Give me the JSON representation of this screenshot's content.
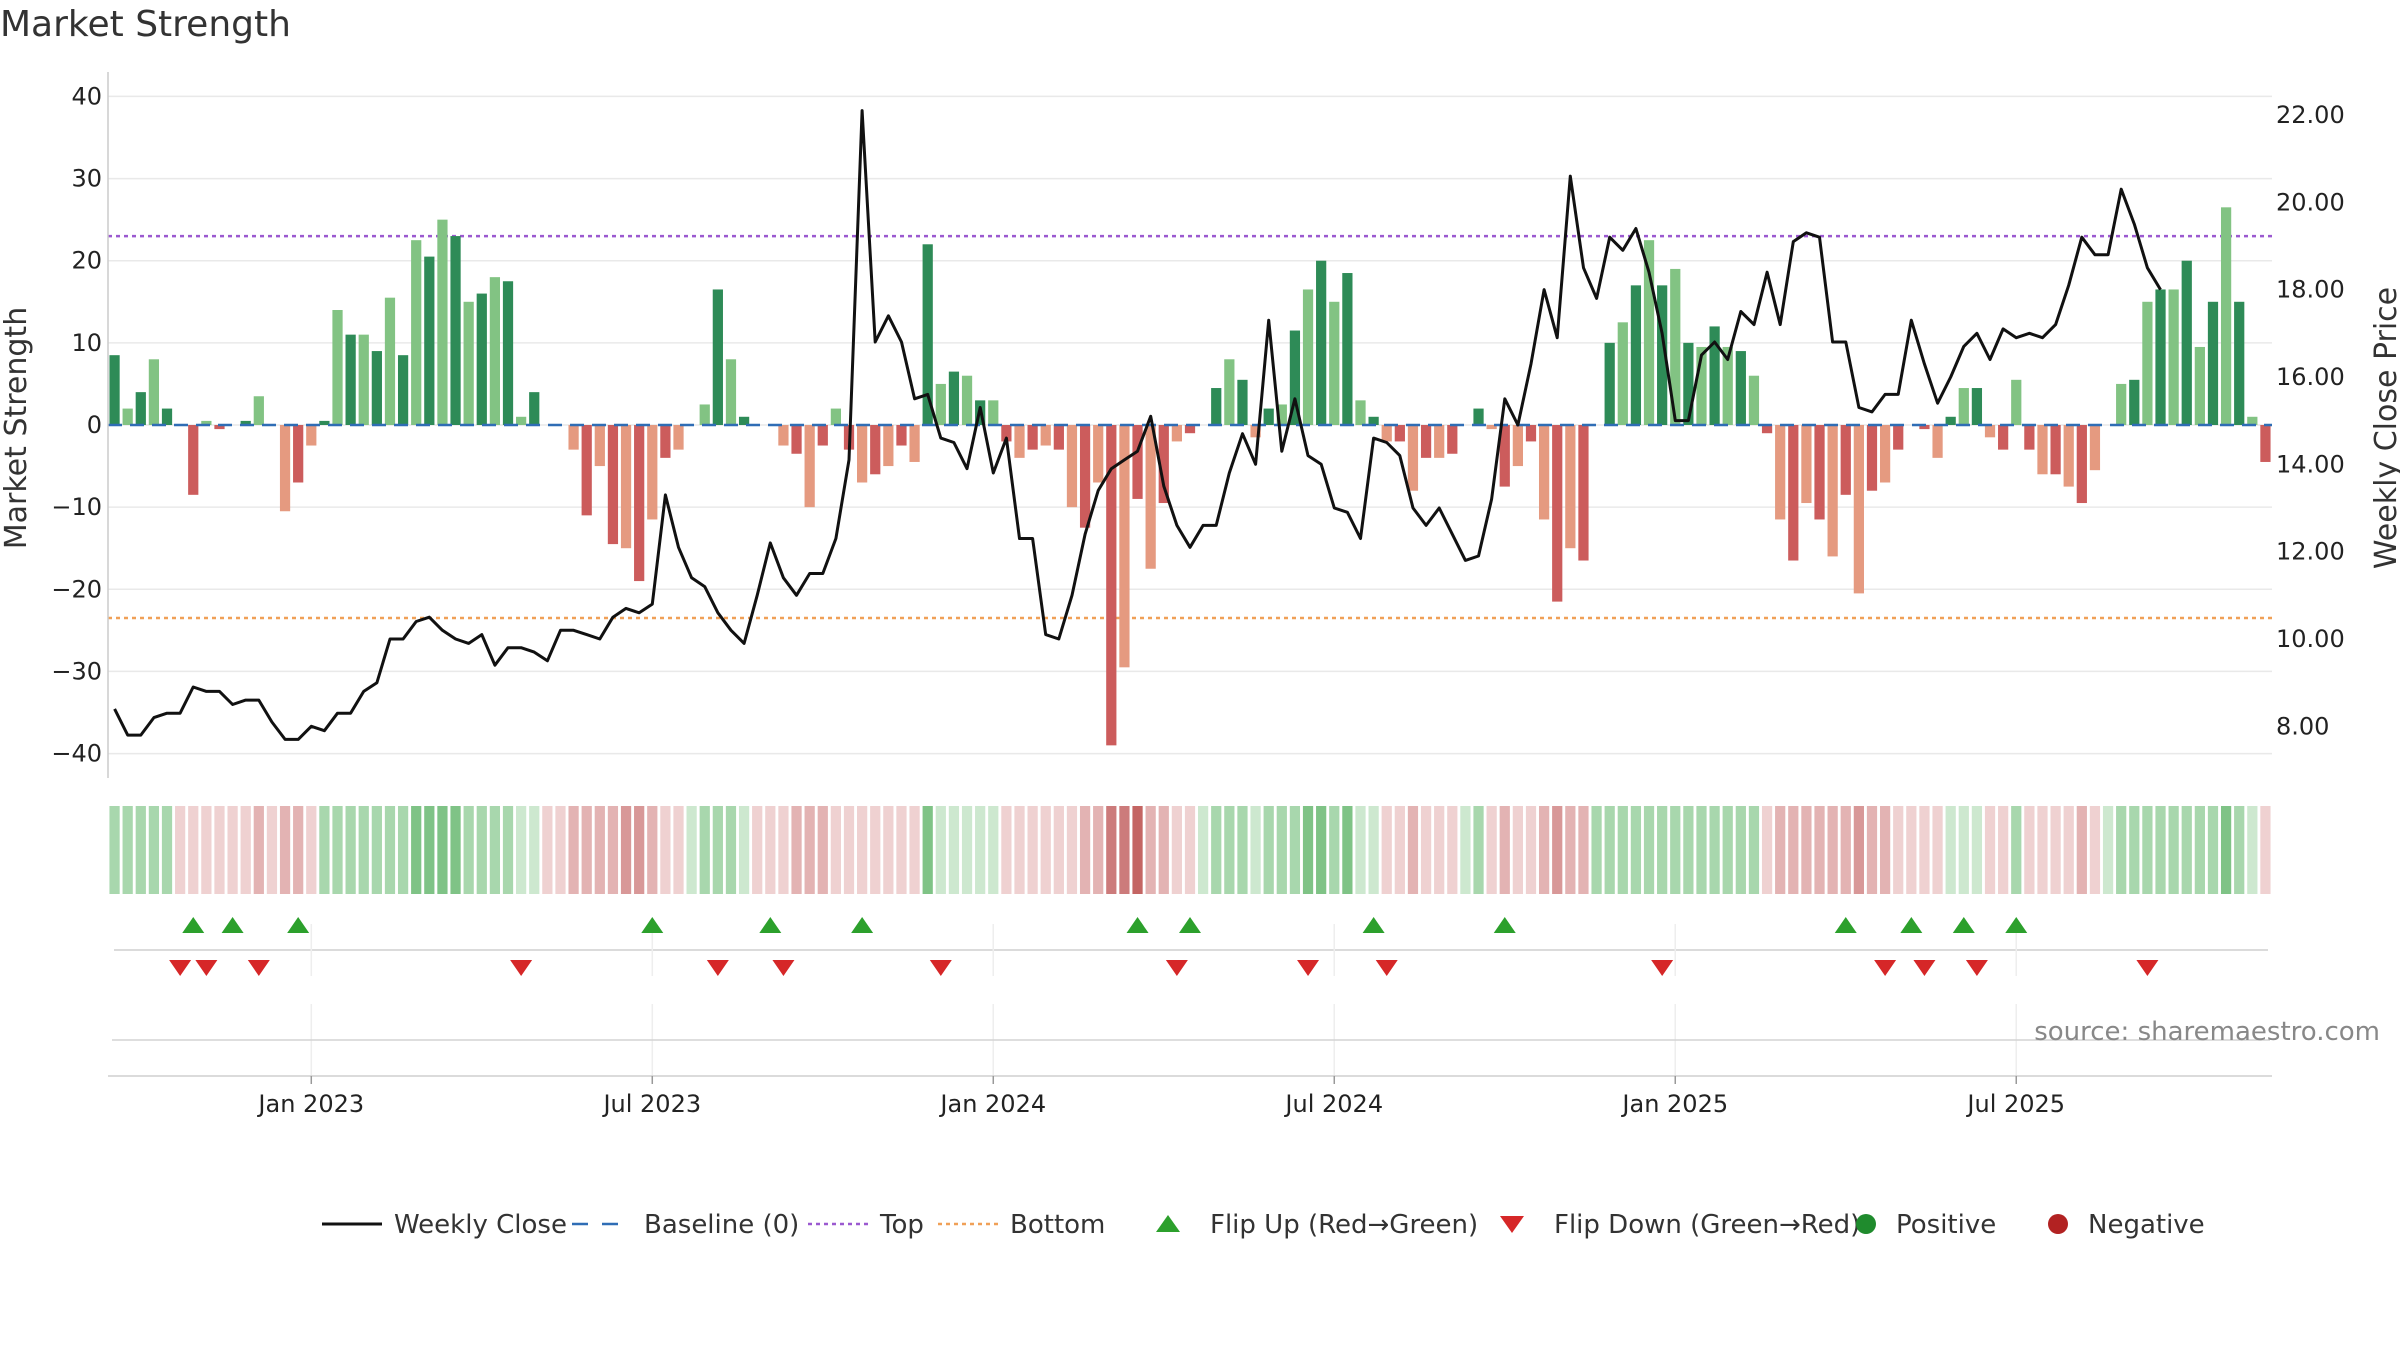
{
  "chart_data": {
    "type": "bar",
    "title": "Market Strength",
    "ylabel_left": "Market Strength",
    "ylabel_right": "Weekly Close Price",
    "ylim_left": [
      -42,
      42
    ],
    "ylim_right": [
      7.0,
      22.8
    ],
    "yticks_left": [
      40,
      30,
      20,
      10,
      0,
      -10,
      -20,
      -30,
      -40
    ],
    "yticks_right": [
      22.0,
      20.0,
      18.0,
      16.0,
      14.0,
      12.0,
      10.0,
      8.0
    ],
    "x_ticks": [
      {
        "week": 15,
        "label": "Jan 2023"
      },
      {
        "week": 41,
        "label": "Jul 2023"
      },
      {
        "week": 67,
        "label": "Jan 2024"
      },
      {
        "week": 93,
        "label": "Jul 2024"
      },
      {
        "week": 119,
        "label": "Jan 2025"
      },
      {
        "week": 145,
        "label": "Jul 2025"
      }
    ],
    "top_line": 23,
    "bottom_line": -23.5,
    "baseline": 0,
    "strength": [
      8.5,
      2,
      4,
      8,
      2,
      0,
      -8.5,
      0.5,
      -0.5,
      0,
      0.5,
      3.5,
      0,
      -10.5,
      -7,
      -2.5,
      0.5,
      14,
      11,
      11,
      9,
      15.5,
      8.5,
      22.5,
      20.5,
      25,
      23,
      15,
      16,
      18,
      17.5,
      1,
      4,
      0,
      0,
      -3,
      -11,
      -5,
      -14.5,
      -15,
      -19,
      -11.5,
      -4,
      -3,
      0,
      2.5,
      16.5,
      8,
      1,
      0,
      0,
      -2.5,
      -3.5,
      -10,
      -2.5,
      2,
      -3,
      -7,
      -6,
      -5,
      -2.5,
      -4.5,
      22,
      5,
      6.5,
      6,
      3,
      3,
      -2,
      -4,
      -3,
      -2.5,
      -3,
      -10,
      -12.5,
      -7,
      -39,
      -29.5,
      -9,
      -17.5,
      -9.5,
      -2,
      -1,
      0,
      4.5,
      8,
      5.5,
      -1.5,
      2,
      2.5,
      11.5,
      16.5,
      20,
      15,
      18.5,
      3,
      1,
      -2,
      -2,
      -8,
      -4,
      -4,
      -3.5,
      0,
      2,
      -0.5,
      -7.5,
      -5,
      -2,
      -11.5,
      -21.5,
      -15,
      -16.5,
      0,
      10,
      12.5,
      17,
      22.5,
      17,
      19,
      10,
      9.5,
      12,
      9.5,
      9,
      6,
      -1,
      -11.5,
      -16.5,
      -9.5,
      -11.5,
      -16,
      -8.5,
      -20.5,
      -8,
      -7,
      -3,
      0,
      -0.5,
      -4,
      1,
      4.5,
      4.5,
      -1.5,
      -3,
      5.5,
      -3,
      -6,
      -6,
      -7.5,
      -9.5,
      -5.5,
      0,
      5,
      5.5,
      15,
      16.5,
      16.5,
      20,
      9.5,
      15,
      26.5,
      15,
      1,
      -4.5
    ],
    "weekly_close": [
      8.4,
      7.8,
      7.8,
      8.2,
      8.3,
      8.3,
      8.9,
      8.8,
      8.8,
      8.5,
      8.6,
      8.6,
      8.1,
      7.7,
      7.7,
      8.0,
      7.9,
      8.3,
      8.3,
      8.8,
      9.0,
      10.0,
      10.0,
      10.4,
      10.5,
      10.2,
      10.0,
      9.9,
      10.1,
      9.4,
      9.8,
      9.8,
      9.7,
      9.5,
      10.2,
      10.2,
      10.1,
      10.0,
      10.5,
      10.7,
      10.6,
      10.8,
      13.3,
      12.1,
      11.4,
      11.2,
      10.6,
      10.2,
      9.9,
      11.0,
      12.2,
      11.4,
      11.0,
      11.5,
      11.5,
      12.3,
      14.1,
      22.1,
      16.8,
      17.4,
      16.8,
      15.5,
      15.6,
      14.6,
      14.5,
      13.9,
      15.3,
      13.8,
      14.6,
      12.3,
      12.3,
      10.1,
      10.0,
      11.0,
      12.4,
      13.4,
      13.9,
      14.1,
      14.3,
      15.1,
      13.5,
      12.6,
      12.1,
      12.6,
      12.6,
      13.8,
      14.7,
      14.0,
      17.3,
      14.3,
      15.5,
      14.2,
      14.0,
      13.0,
      12.9,
      12.3,
      14.6,
      14.5,
      14.2,
      13.0,
      12.6,
      13.0,
      12.4,
      11.8,
      11.9,
      13.2,
      15.5,
      14.9,
      16.3,
      18.0,
      16.9,
      20.6,
      18.5,
      17.8,
      19.2,
      18.9,
      19.4,
      18.4,
      17.0,
      15.0,
      15.0,
      16.5,
      16.8,
      16.4,
      17.5,
      17.2,
      18.4,
      17.2,
      19.1,
      19.3,
      19.2,
      16.8,
      16.8,
      15.3,
      15.2,
      15.6,
      15.6,
      17.3,
      16.3,
      15.4,
      16.0,
      16.7,
      17.0,
      16.4,
      17.1,
      16.9,
      17.0,
      16.9,
      17.2,
      18.1,
      19.2,
      18.8,
      18.8,
      20.3,
      19.5,
      18.5,
      18.0
    ],
    "color_strip": [
      2,
      2,
      2,
      2,
      2,
      -1,
      -1,
      -1,
      -1,
      -1,
      -1,
      -2,
      -1,
      -2,
      -2,
      -1,
      2,
      2,
      2,
      2,
      2,
      2,
      2,
      3,
      3,
      3,
      3,
      2,
      2,
      2,
      2,
      1,
      1,
      -1,
      -1,
      -2,
      -2,
      -2,
      -2,
      -3,
      -3,
      -2,
      -1,
      -1,
      1,
      2,
      2,
      2,
      1,
      -1,
      -1,
      -1,
      -2,
      -2,
      -2,
      -1,
      -1,
      -1,
      -1,
      -1,
      -1,
      -1,
      3,
      1,
      1,
      1,
      1,
      1,
      -1,
      -1,
      -1,
      -1,
      -1,
      -1,
      -2,
      -2,
      -4,
      -4,
      -9,
      -2,
      -2,
      -1,
      -1,
      1,
      2,
      2,
      2,
      1,
      2,
      2,
      2,
      3,
      3,
      2,
      3,
      1,
      1,
      -1,
      -1,
      -2,
      -1,
      -1,
      -1,
      1,
      2,
      -1,
      -2,
      -1,
      -1,
      -2,
      -3,
      -2,
      -2,
      2,
      2,
      2,
      2,
      2,
      2,
      2,
      2,
      2,
      2,
      2,
      2,
      2,
      -1,
      -2,
      -2,
      -2,
      -2,
      -2,
      -2,
      -3,
      -2,
      -2,
      -1,
      -1,
      -1,
      -1,
      1,
      1,
      1,
      -1,
      -1,
      2,
      -1,
      -1,
      -1,
      -1,
      -2,
      -1,
      1,
      2,
      2,
      2,
      2,
      2,
      2,
      2,
      2,
      3,
      2,
      1,
      -1
    ],
    "flip_up_weeks": [
      6,
      9,
      14,
      41,
      50,
      57,
      78,
      82,
      96,
      106,
      132,
      137,
      141,
      145
    ],
    "flip_down_weeks": [
      5,
      7,
      11,
      31,
      46,
      51,
      63,
      81,
      91,
      97,
      118,
      135,
      138,
      142,
      155
    ],
    "legend": [
      {
        "label": "Weekly Close",
        "symbol": "line",
        "color": "#111111"
      },
      {
        "label": "Baseline (0)",
        "symbol": "dash",
        "color": "#2f6db5"
      },
      {
        "label": "Top",
        "symbol": "dot",
        "color": "#9b59d0"
      },
      {
        "label": "Bottom",
        "symbol": "dot",
        "color": "#f0a057"
      },
      {
        "label": "Flip Up (Red→Green)",
        "symbol": "tri-up",
        "color": "#2ca02c"
      },
      {
        "label": "Flip Down (Green→Red)",
        "symbol": "tri-down",
        "color": "#d62728"
      },
      {
        "label": "Positive",
        "symbol": "circle",
        "color": "#1f8b2d"
      },
      {
        "label": "Negative",
        "symbol": "circle",
        "color": "#b22222"
      }
    ],
    "source": "source: sharemaestro.com"
  }
}
